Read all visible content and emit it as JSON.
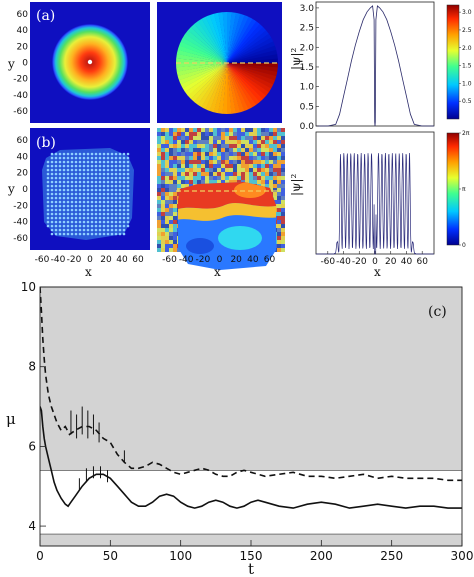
{
  "chart_data": [
    {
      "id": "map-a-density",
      "type": "heatmap",
      "panel_label": "(a)",
      "ylabel": "y",
      "y_ticks": [
        "60",
        "40",
        "20",
        "0",
        "-20",
        "-40",
        "-60"
      ],
      "x_range": [
        -75,
        75
      ],
      "y_range": [
        -75,
        75
      ]
    },
    {
      "id": "map-a-phase",
      "type": "heatmap",
      "x_range": [
        -75,
        75
      ],
      "y_range": [
        -75,
        75
      ]
    },
    {
      "id": "profile-a",
      "type": "line",
      "ylabel": "|ψ|²",
      "y_ticks": [
        "3.0",
        "2.5",
        "2.0",
        "1.5",
        "1.0",
        "0.5",
        "0.0"
      ],
      "ylim": [
        0,
        3.15
      ],
      "xlim": [
        -75,
        75
      ],
      "x": [
        -75,
        -60,
        -50,
        -45,
        -40,
        -35,
        -30,
        -25,
        -20,
        -15,
        -10,
        -6,
        -3,
        -1.2,
        -0.4,
        0,
        0.4,
        1.2,
        3,
        6,
        10,
        15,
        20,
        25,
        30,
        35,
        40,
        45,
        50,
        60,
        75
      ],
      "y": [
        0.0,
        0.0,
        0.04,
        0.3,
        0.75,
        1.2,
        1.65,
        2.05,
        2.4,
        2.7,
        2.9,
        3.0,
        3.05,
        2.7,
        0.1,
        0.0,
        0.1,
        2.7,
        3.05,
        3.0,
        2.9,
        2.7,
        2.4,
        2.05,
        1.65,
        1.2,
        0.75,
        0.3,
        0.04,
        0.0,
        0.0
      ]
    },
    {
      "id": "map-b-density",
      "type": "heatmap",
      "panel_label": "(b)",
      "ylabel": "y",
      "xlabel": "x",
      "y_ticks": [
        "60",
        "40",
        "20",
        "0",
        "-20",
        "-40",
        "-60"
      ],
      "x_ticks": [
        "-60",
        "-40",
        "-20",
        "0",
        "20",
        "40",
        "60"
      ],
      "x_range": [
        -75,
        75
      ],
      "y_range": [
        -75,
        75
      ]
    },
    {
      "id": "map-b-phase",
      "type": "heatmap",
      "xlabel": "x",
      "x_ticks": [
        "-60",
        "-40",
        "-20",
        "0",
        "20",
        "40",
        "60"
      ],
      "x_range": [
        -75,
        75
      ],
      "y_range": [
        -75,
        75
      ]
    },
    {
      "id": "profile-b",
      "type": "line",
      "xlabel": "x",
      "ylabel": "|ψ|²",
      "x_ticks": [
        "-60",
        "-40",
        "-20",
        "0",
        "20",
        "40",
        "60"
      ],
      "xlim": [
        -75,
        75
      ],
      "ylim": [
        0,
        2.9
      ],
      "envelope_x": [
        -75,
        -52,
        -48,
        -46,
        -44,
        44,
        46,
        48,
        52,
        75
      ],
      "envelope_y": [
        0.0,
        0.0,
        0.3,
        0.8,
        2.4,
        2.4,
        0.8,
        0.3,
        0.0,
        0.0
      ],
      "oscillation_period": 4.4
    },
    {
      "id": "colorbar-density",
      "type": "heatmap",
      "ticks": [
        "3.0",
        "2.5",
        "2.0",
        "1.5",
        "1.0",
        "0.5"
      ],
      "tick_values": [
        3.0,
        2.5,
        2.0,
        1.5,
        1.0,
        0.5
      ],
      "range": [
        0,
        3.2
      ]
    },
    {
      "id": "colorbar-phase",
      "type": "heatmap",
      "ticks": [
        "2π",
        "π",
        "0"
      ],
      "tick_values": [
        6.283,
        3.1416,
        0
      ],
      "range": [
        0,
        6.283
      ]
    },
    {
      "id": "mu-vs-t",
      "type": "line",
      "panel_label": "(c)",
      "xlabel": "t",
      "ylabel": "μ",
      "xlim": [
        0,
        300
      ],
      "ylim": [
        3.5,
        10
      ],
      "x_ticks": [
        0,
        50,
        100,
        150,
        200,
        250,
        300
      ],
      "y_ticks": [
        4,
        6,
        8,
        10
      ],
      "bands": [
        {
          "y0": 5.4,
          "y1": 10
        },
        {
          "y0": 3.5,
          "y1": 3.8
        }
      ],
      "series": [
        {
          "style": "dashed",
          "x": [
            0,
            1,
            2,
            3,
            4,
            6,
            8,
            10,
            12,
            15,
            18,
            21,
            25,
            30,
            35,
            40,
            45,
            50,
            55,
            60,
            65,
            70,
            75,
            80,
            85,
            90,
            95,
            100,
            105,
            110,
            115,
            120,
            125,
            130,
            135,
            140,
            145,
            150,
            160,
            170,
            180,
            190,
            200,
            210,
            220,
            230,
            240,
            250,
            260,
            270,
            280,
            290,
            300
          ],
          "y": [
            10,
            9.4,
            8.7,
            8.2,
            7.8,
            7.3,
            7.0,
            6.8,
            6.6,
            6.4,
            6.5,
            6.3,
            6.4,
            6.5,
            6.5,
            6.4,
            6.2,
            6.1,
            5.8,
            5.6,
            5.45,
            5.45,
            5.5,
            5.6,
            5.55,
            5.45,
            5.35,
            5.3,
            5.35,
            5.4,
            5.45,
            5.4,
            5.3,
            5.25,
            5.25,
            5.35,
            5.4,
            5.35,
            5.25,
            5.3,
            5.35,
            5.25,
            5.25,
            5.2,
            5.25,
            5.3,
            5.2,
            5.25,
            5.2,
            5.2,
            5.2,
            5.15,
            5.15
          ]
        },
        {
          "style": "solid",
          "x": [
            0,
            1,
            2,
            3,
            4,
            6,
            8,
            10,
            12,
            15,
            18,
            20,
            22,
            25,
            28,
            30,
            35,
            40,
            45,
            50,
            55,
            60,
            65,
            70,
            75,
            80,
            85,
            90,
            95,
            100,
            105,
            110,
            115,
            120,
            125,
            130,
            135,
            140,
            145,
            150,
            155,
            160,
            170,
            180,
            190,
            200,
            210,
            220,
            230,
            240,
            250,
            260,
            270,
            280,
            290,
            300
          ],
          "y": [
            7.0,
            6.9,
            6.5,
            6.2,
            6.0,
            5.7,
            5.4,
            5.1,
            4.9,
            4.7,
            4.55,
            4.5,
            4.6,
            4.75,
            4.9,
            5.0,
            5.2,
            5.3,
            5.3,
            5.2,
            5.0,
            4.8,
            4.6,
            4.5,
            4.5,
            4.6,
            4.75,
            4.8,
            4.75,
            4.6,
            4.5,
            4.45,
            4.5,
            4.6,
            4.65,
            4.6,
            4.5,
            4.45,
            4.5,
            4.6,
            4.65,
            4.6,
            4.5,
            4.45,
            4.55,
            4.6,
            4.55,
            4.45,
            4.5,
            4.55,
            4.5,
            4.45,
            4.5,
            4.5,
            4.45,
            4.45
          ]
        }
      ]
    }
  ]
}
